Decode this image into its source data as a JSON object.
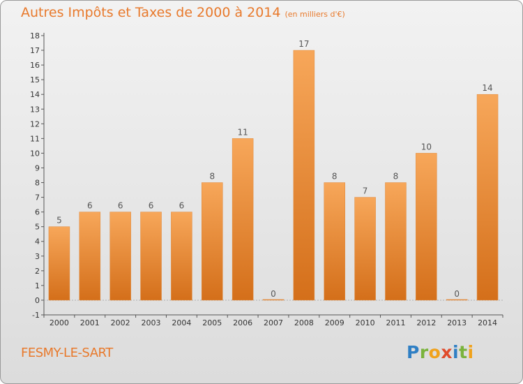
{
  "title": "Autres Impôts et Taxes de 2000 à 2014",
  "subtitle": "(en milliers d'€)",
  "place_label": "FESMY-LE-SART",
  "logo": {
    "letters": [
      "P",
      "r",
      "o",
      "x",
      "i",
      "t",
      "i"
    ],
    "colors": [
      "#2f7fc4",
      "#7ab33c",
      "#f0a21c",
      "#e04b2b",
      "#2f7fc4",
      "#7ab33c",
      "#f0a21c"
    ]
  },
  "colors": {
    "bar_top": "#f7a75a",
    "bar_bottom": "#d46f1a",
    "axis_text": "#333333",
    "grid": "#c8c8c8",
    "accent": "#e8792b"
  },
  "chart_data": {
    "type": "bar",
    "categories": [
      "2000",
      "2001",
      "2002",
      "2003",
      "2004",
      "2005",
      "2006",
      "2007",
      "2008",
      "2009",
      "2010",
      "2011",
      "2012",
      "2013",
      "2014"
    ],
    "values": [
      5,
      6,
      6,
      6,
      6,
      8,
      11,
      0,
      17,
      8,
      7,
      8,
      10,
      0,
      14
    ],
    "data_labels": [
      "5",
      "6",
      "6",
      "6",
      "6",
      "8",
      "11",
      "0",
      "17",
      "8",
      "7",
      "8",
      "10",
      "0",
      "14"
    ],
    "yticks": [
      "-1",
      "0",
      "1",
      "2",
      "3",
      "4",
      "5",
      "6",
      "7",
      "8",
      "9",
      "10",
      "11",
      "12",
      "13",
      "14",
      "15",
      "16",
      "17",
      "18"
    ],
    "ylim": [
      -1,
      18
    ],
    "xlabel": "",
    "ylabel": "",
    "grid": false
  }
}
